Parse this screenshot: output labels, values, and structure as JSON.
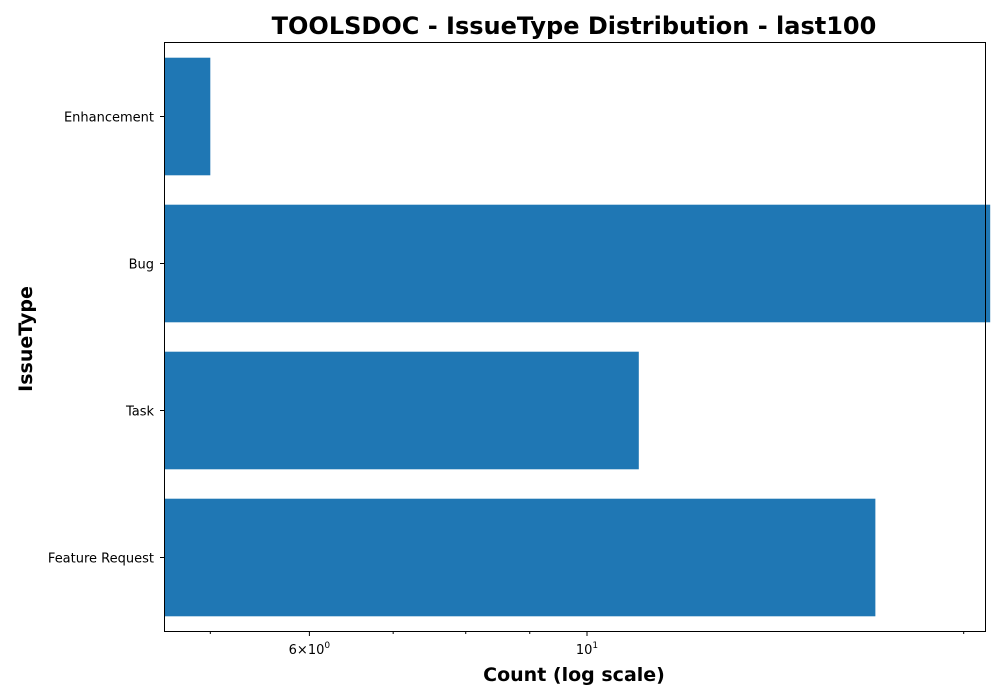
{
  "chart_data": {
    "type": "bar",
    "orientation": "horizontal",
    "title": "TOOLSDOC - IssueType Distribution - last100",
    "xlabel": "Count (log scale)",
    "ylabel": "IssueType",
    "x_scale": "log",
    "xlim": [
      4.6,
      20.8
    ],
    "categories": [
      "Feature Request",
      "Task",
      "Bug",
      "Enhancement"
    ],
    "values": [
      17,
      11,
      21,
      5
    ],
    "bar_color": "#1f77b4",
    "grid": false,
    "x_ticks": [
      {
        "value": 6,
        "base": "6×10",
        "exponent": "0"
      },
      {
        "value": 10,
        "base": "10",
        "exponent": "1"
      }
    ],
    "x_minor_ticks": [
      5,
      7,
      8,
      9,
      20
    ]
  }
}
